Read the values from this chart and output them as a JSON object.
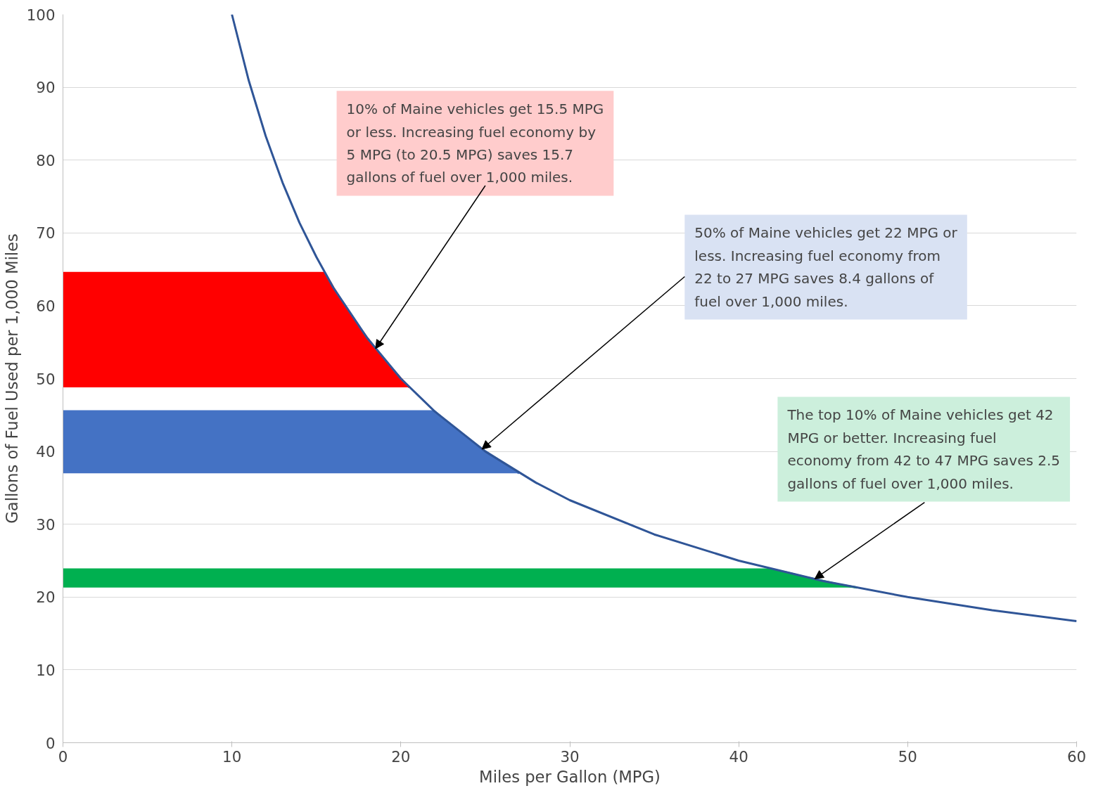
{
  "chart_data": {
    "type": "line",
    "xlabel": "Miles per Gallon (MPG)",
    "ylabel": "Gallons of Fuel Used per 1,000 Miles",
    "xlim": [
      0,
      60
    ],
    "xticks": [
      0,
      10,
      20,
      30,
      40,
      50,
      60
    ],
    "ylim": [
      0,
      100
    ],
    "yticks": [
      0,
      10,
      20,
      30,
      40,
      50,
      60,
      70,
      80,
      90,
      100
    ],
    "grid": "y",
    "series": [
      {
        "color": "#2f5597",
        "x": [
          10,
          11,
          12,
          13,
          14,
          15,
          16,
          18,
          20,
          22,
          25,
          28,
          30,
          35,
          40,
          45,
          50,
          55,
          60
        ],
        "values": [
          100,
          90.9,
          83.3,
          76.9,
          71.4,
          66.7,
          62.5,
          55.6,
          50,
          45.5,
          40,
          35.7,
          33.3,
          28.6,
          25,
          22.2,
          20,
          18.2,
          16.7
        ]
      },
      {
        "color": "#ff0000",
        "x": [
          0,
          15.5,
          16,
          17,
          18,
          19,
          20,
          20.5
        ],
        "values": [
          64.5,
          64.5,
          62.5,
          58.8,
          55.6,
          52.6,
          50,
          48.8
        ],
        "upper": [
          64.5,
          64.5,
          62.5,
          58.8,
          55.6,
          52.6,
          50,
          48.8
        ],
        "lower": [
          48.8,
          48.8,
          48.8,
          48.8,
          48.8,
          48.8,
          48.8,
          48.8
        ]
      },
      {
        "color": "#4472c4",
        "x": [
          0,
          22,
          23,
          24,
          25,
          26,
          27
        ],
        "values": [
          45.5,
          45.5,
          43.5,
          41.7,
          40,
          38.5,
          37.0
        ],
        "upper": [
          45.5,
          45.5,
          43.5,
          41.7,
          40,
          38.5,
          37.0
        ],
        "lower": [
          37.0,
          37.0,
          37.0,
          37.0,
          37.0,
          37.0,
          37.0
        ]
      },
      {
        "color": "#00b050",
        "x": [
          0,
          42,
          43,
          44,
          45,
          46,
          47
        ],
        "values": [
          23.8,
          23.8,
          23.3,
          22.7,
          22.2,
          21.7,
          21.3
        ],
        "upper": [
          23.8,
          23.8,
          23.3,
          22.7,
          22.2,
          21.7,
          21.3
        ],
        "lower": [
          21.3,
          21.3,
          21.3,
          21.3,
          21.3,
          21.3,
          21.3
        ]
      }
    ],
    "annotations": [
      {
        "text": "10% of Maine vehicles get 15.5 MPG or less. Increasing fuel economy by 5 MPG (to 20.5 MPG) saves 15.7 gallons of fuel over 1,000 miles.",
        "x": 18.5,
        "y": 54.1
      },
      {
        "text": "50% of Maine vehicles get 22 MPG or less. Increasing fuel economy from 22 to 27 MPG saves 8.4 gallons of fuel over 1,000 miles.",
        "x": 24.8,
        "y": 40.3
      },
      {
        "text": "The top 10% of Maine vehicles get 42 MPG or better. Increasing fuel economy from 42 to 47 MPG saves 2.5 gallons of fuel over 1,000 miles.",
        "x": 44.5,
        "y": 22.5
      }
    ]
  }
}
